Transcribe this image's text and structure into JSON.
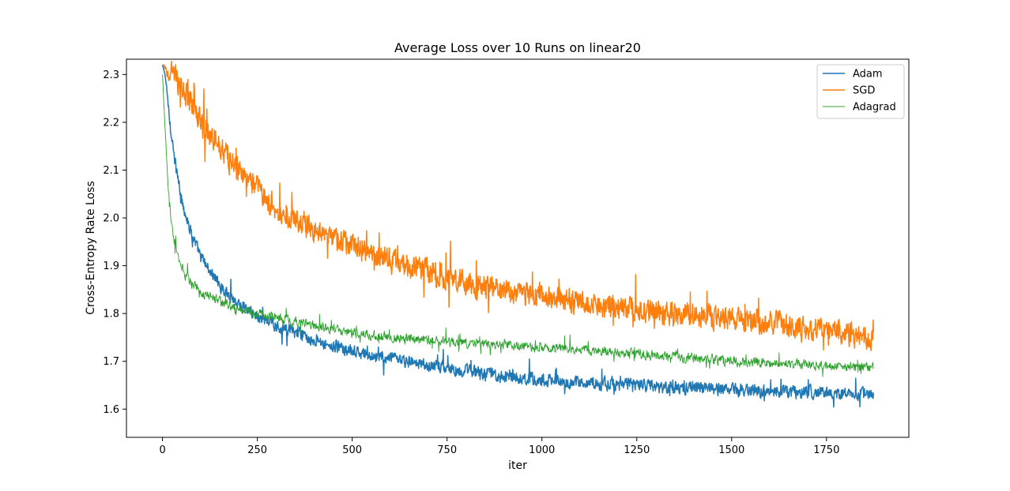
{
  "chart_data": {
    "type": "line",
    "title": "Average Loss over 10 Runs on linear20",
    "xlabel": "iter",
    "ylabel": "Cross-Entropy Rate Loss",
    "xlim": [
      -95,
      1967
    ],
    "ylim": [
      1.541,
      2.332
    ],
    "xticks": [
      0,
      250,
      500,
      750,
      1000,
      1250,
      1500,
      1750
    ],
    "yticks": [
      1.6,
      1.7,
      1.8,
      1.9,
      2.0,
      2.1,
      2.2,
      2.3
    ],
    "xtick_labels": [
      "0",
      "250",
      "500",
      "750",
      "1000",
      "1250",
      "1500",
      "1750"
    ],
    "ytick_labels": [
      "1.6",
      "1.7",
      "1.8",
      "1.9",
      "2.0",
      "2.1",
      "2.2",
      "2.3"
    ],
    "grid": false,
    "legend_position": "top-right",
    "x_max": 1874,
    "series": [
      {
        "name": "Adam",
        "color": "#1f77b4",
        "width": 1.5,
        "noise": 0.018,
        "anchors": [
          [
            0,
            2.32
          ],
          [
            5,
            2.305
          ],
          [
            10,
            2.28
          ],
          [
            20,
            2.2
          ],
          [
            30,
            2.13
          ],
          [
            50,
            2.04
          ],
          [
            75,
            1.97
          ],
          [
            100,
            1.92
          ],
          [
            150,
            1.86
          ],
          [
            200,
            1.82
          ],
          [
            250,
            1.795
          ],
          [
            300,
            1.775
          ],
          [
            400,
            1.745
          ],
          [
            500,
            1.72
          ],
          [
            600,
            1.705
          ],
          [
            750,
            1.685
          ],
          [
            900,
            1.67
          ],
          [
            1000,
            1.66
          ],
          [
            1250,
            1.65
          ],
          [
            1500,
            1.64
          ],
          [
            1750,
            1.635
          ],
          [
            1874,
            1.63
          ]
        ]
      },
      {
        "name": "SGD",
        "color": "#ff7f0e",
        "width": 1.5,
        "noise": 0.035,
        "anchors": [
          [
            0,
            2.32
          ],
          [
            25,
            2.3
          ],
          [
            50,
            2.27
          ],
          [
            75,
            2.24
          ],
          [
            100,
            2.205
          ],
          [
            150,
            2.15
          ],
          [
            200,
            2.1
          ],
          [
            250,
            2.06
          ],
          [
            300,
            2.02
          ],
          [
            350,
            1.995
          ],
          [
            400,
            1.975
          ],
          [
            500,
            1.94
          ],
          [
            600,
            1.91
          ],
          [
            750,
            1.875
          ],
          [
            900,
            1.85
          ],
          [
            1000,
            1.835
          ],
          [
            1250,
            1.81
          ],
          [
            1500,
            1.79
          ],
          [
            1750,
            1.765
          ],
          [
            1874,
            1.75
          ]
        ]
      },
      {
        "name": "Adagrad",
        "color": "#2ca02c",
        "width": 0.9,
        "noise": 0.014,
        "anchors": [
          [
            0,
            2.3
          ],
          [
            3,
            2.25
          ],
          [
            8,
            2.17
          ],
          [
            15,
            2.06
          ],
          [
            25,
            1.98
          ],
          [
            40,
            1.92
          ],
          [
            60,
            1.88
          ],
          [
            100,
            1.845
          ],
          [
            150,
            1.825
          ],
          [
            200,
            1.81
          ],
          [
            300,
            1.79
          ],
          [
            400,
            1.775
          ],
          [
            500,
            1.76
          ],
          [
            600,
            1.75
          ],
          [
            750,
            1.74
          ],
          [
            1000,
            1.73
          ],
          [
            1250,
            1.715
          ],
          [
            1500,
            1.7
          ],
          [
            1750,
            1.69
          ],
          [
            1874,
            1.685
          ]
        ]
      }
    ]
  }
}
